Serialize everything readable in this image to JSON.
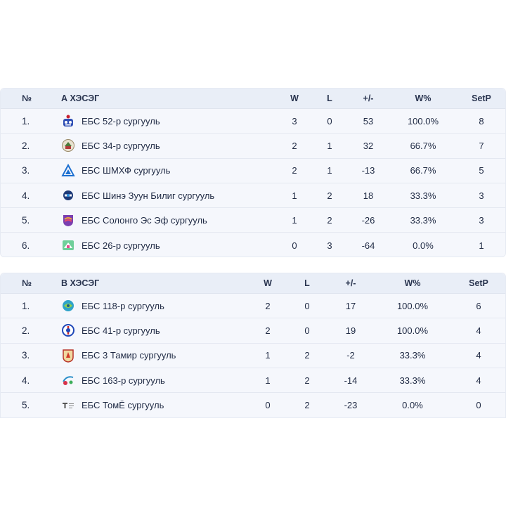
{
  "columns": {
    "num": "№",
    "w": "W",
    "l": "L",
    "pm": "+/-",
    "wp": "W%",
    "setp": "SetP"
  },
  "group_a": {
    "title": "А ХЭСЭГ",
    "rows": [
      {
        "rank": "1.",
        "team": "ЕБС 52-р сургууль",
        "logo": "school-52-logo",
        "w": "3",
        "l": "0",
        "pm": "53",
        "wp": "100.0%",
        "setp": "8"
      },
      {
        "rank": "2.",
        "team": "ЕБС 34-р сургууль",
        "logo": "school-34-logo",
        "w": "2",
        "l": "1",
        "pm": "32",
        "wp": "66.7%",
        "setp": "7"
      },
      {
        "rank": "3.",
        "team": "ЕБС ШМХФ сургууль",
        "logo": "shmkhf-school-logo",
        "w": "2",
        "l": "1",
        "pm": "-13",
        "wp": "66.7%",
        "setp": "5"
      },
      {
        "rank": "4.",
        "team": "ЕБС Шинэ Зуун Билиг сургууль",
        "logo": "shine-zuun-bilig-logo",
        "w": "1",
        "l": "2",
        "pm": "18",
        "wp": "33.3%",
        "setp": "3"
      },
      {
        "rank": "5.",
        "team": "ЕБС Солонго Эс Эф сургууль",
        "logo": "solongo-sf-logo",
        "w": "1",
        "l": "2",
        "pm": "-26",
        "wp": "33.3%",
        "setp": "3"
      },
      {
        "rank": "6.",
        "team": "ЕБС 26-р сургууль",
        "logo": "school-26-logo",
        "w": "0",
        "l": "3",
        "pm": "-64",
        "wp": "0.0%",
        "setp": "1"
      }
    ]
  },
  "group_b": {
    "title": "В ХЭСЭГ",
    "rows": [
      {
        "rank": "1.",
        "team": "ЕБС 118-р сургууль",
        "logo": "school-118-logo",
        "w": "2",
        "l": "0",
        "pm": "17",
        "wp": "100.0%",
        "setp": "6"
      },
      {
        "rank": "2.",
        "team": "ЕБС 41-р сургууль",
        "logo": "school-41-logo",
        "w": "2",
        "l": "0",
        "pm": "19",
        "wp": "100.0%",
        "setp": "4"
      },
      {
        "rank": "3.",
        "team": "ЕБС 3 Тамир сургууль",
        "logo": "three-tamir-logo",
        "w": "1",
        "l": "2",
        "pm": "-2",
        "wp": "33.3%",
        "setp": "4"
      },
      {
        "rank": "4.",
        "team": "ЕБС 163-р сургууль",
        "logo": "school-163-logo",
        "w": "1",
        "l": "2",
        "pm": "-14",
        "wp": "33.3%",
        "setp": "4"
      },
      {
        "rank": "5.",
        "team": "ЕБС ТомЁ сургууль",
        "logo": "tomyo-school-logo",
        "w": "0",
        "l": "2",
        "pm": "-23",
        "wp": "0.0%",
        "setp": "0"
      }
    ]
  },
  "colors": {
    "table_bg": "#f5f7fc",
    "header_bg": "#e9eef7",
    "text": "#1f2a44",
    "divider": "#e4e8f1"
  }
}
